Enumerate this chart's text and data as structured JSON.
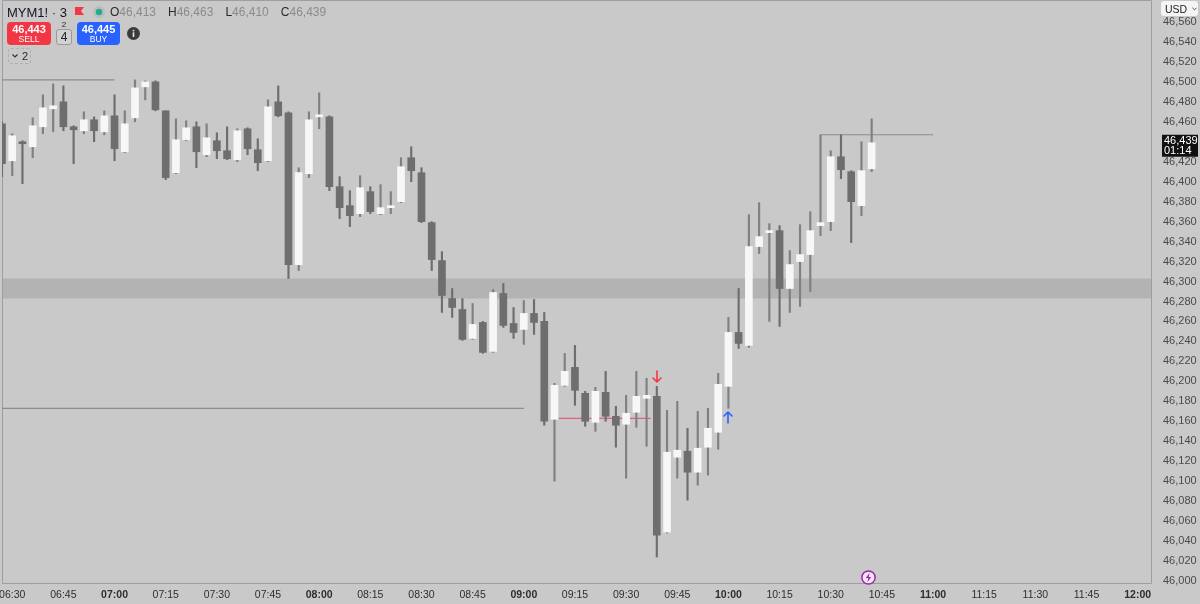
{
  "chart_data": {
    "type": "candlestick",
    "title": "MYM1! · 3",
    "x": [
      6.45,
      6.5,
      6.55,
      6.6,
      6.65,
      6.7,
      6.75,
      6.8,
      6.85,
      6.9,
      6.95,
      7,
      7.05,
      7.1,
      7.15,
      7.2,
      7.25,
      7.3,
      7.35,
      7.4,
      7.45,
      7.5,
      7.55,
      7.6,
      7.65,
      7.7,
      7.75,
      7.8,
      7.85,
      7.9,
      7.95,
      8,
      8.05,
      8.1,
      8.15,
      8.2,
      8.25,
      8.3,
      8.35,
      8.4,
      8.45,
      8.5,
      8.55,
      8.6,
      8.65,
      8.7,
      8.75,
      8.8,
      8.85,
      8.9,
      8.95,
      9,
      9.05,
      9.1,
      9.15,
      9.2,
      9.25,
      9.3,
      9.35,
      9.4,
      9.45,
      9.5,
      9.55,
      9.6,
      9.65,
      9.7,
      9.75,
      9.8,
      9.85,
      9.9,
      9.95,
      10,
      10.05,
      10.1,
      10.15,
      10.2,
      10.25,
      10.3,
      10.35,
      10.4,
      10.45,
      10.5,
      10.55,
      10.6,
      10.65,
      10.7
    ],
    "ohlc": [
      [
        46458,
        46460,
        46405,
        46418
      ],
      [
        46421,
        46448,
        46406,
        46446
      ],
      [
        46440,
        46441,
        46398,
        46438
      ],
      [
        46435,
        46464,
        46424,
        46456
      ],
      [
        46455,
        46487,
        46448,
        46474
      ],
      [
        46473,
        46498,
        46450,
        46476
      ],
      [
        46480,
        46496,
        46451,
        46455
      ],
      [
        46455,
        46456,
        46418,
        46452
      ],
      [
        46451,
        46470,
        46448,
        46462
      ],
      [
        46462,
        46465,
        46440,
        46451
      ],
      [
        46450,
        46471,
        46447,
        46466
      ],
      [
        46466,
        46487,
        46421,
        46433
      ],
      [
        46430,
        46471,
        46429,
        46458
      ],
      [
        46464,
        46502,
        46460,
        46494
      ],
      [
        46495,
        46501,
        46482,
        46500
      ],
      [
        46500,
        46501,
        46471,
        46472
      ],
      [
        46471,
        46471,
        46402,
        46404
      ],
      [
        46409,
        46463,
        46408,
        46442
      ],
      [
        46442,
        46461,
        46441,
        46454
      ],
      [
        46455,
        46460,
        46414,
        46430
      ],
      [
        46427,
        46458,
        46425,
        46444
      ],
      [
        46441,
        46449,
        46423,
        46431
      ],
      [
        46431,
        46455,
        46422,
        46423
      ],
      [
        46422,
        46453,
        46420,
        46451
      ],
      [
        46453,
        46454,
        46427,
        46433
      ],
      [
        46432,
        46443,
        46411,
        46419
      ],
      [
        46421,
        46482,
        46420,
        46475
      ],
      [
        46480,
        46496,
        46465,
        46466
      ],
      [
        46469,
        46470,
        46303,
        46317
      ],
      [
        46317,
        46414,
        46311,
        46409
      ],
      [
        46408,
        46470,
        46404,
        46462
      ],
      [
        46465,
        46489,
        46453,
        46467
      ],
      [
        46465,
        46466,
        46391,
        46395
      ],
      [
        46395,
        46405,
        46363,
        46374
      ],
      [
        46376,
        46391,
        46355,
        46366
      ],
      [
        46368,
        46406,
        46365,
        46394
      ],
      [
        46390,
        46395,
        46368,
        46370
      ],
      [
        46368,
        46397,
        46367,
        46374
      ],
      [
        46374,
        46390,
        46368,
        46376
      ],
      [
        46380,
        46424,
        46379,
        46415
      ],
      [
        46424,
        46435,
        46400,
        46411
      ],
      [
        46409,
        46414,
        46359,
        46360
      ],
      [
        46359,
        46360,
        46311,
        46322
      ],
      [
        46321,
        46330,
        46269,
        46286
      ],
      [
        46283,
        46293,
        46264,
        46274
      ],
      [
        46272,
        46283,
        46241,
        46242
      ],
      [
        46243,
        46278,
        46242,
        46257
      ],
      [
        46259,
        46260,
        46228,
        46229
      ],
      [
        46230,
        46292,
        46229,
        46289
      ],
      [
        46288,
        46298,
        46254,
        46256
      ],
      [
        46258,
        46274,
        46243,
        46249
      ],
      [
        46252,
        46281,
        46237,
        46268
      ],
      [
        46268,
        46282,
        46247,
        46259
      ],
      [
        46260,
        46269,
        46156,
        46160
      ],
      [
        46162,
        46198,
        46100,
        46196
      ],
      [
        46196,
        46228,
        46195,
        46210
      ],
      [
        46214,
        46236,
        46176,
        46191
      ],
      [
        46188,
        46190,
        46155,
        46160
      ],
      [
        46159,
        46194,
        46150,
        46190
      ],
      [
        46189,
        46210,
        46160,
        46165
      ],
      [
        46165,
        46175,
        46134,
        46156
      ],
      [
        46157,
        46186,
        46103,
        46168
      ],
      [
        46169,
        46210,
        46154,
        46185
      ],
      [
        46183,
        46203,
        46135,
        46186
      ],
      [
        46185,
        46195,
        46024,
        46046
      ],
      [
        46049,
        46171,
        46048,
        46129
      ],
      [
        46124,
        46180,
        46103,
        46131
      ],
      [
        46130,
        46153,
        46081,
        46109
      ],
      [
        46109,
        46170,
        46096,
        46133
      ],
      [
        46134,
        46173,
        46106,
        46153
      ],
      [
        46149,
        46208,
        46132,
        46197
      ],
      [
        46195,
        46264,
        46173,
        46249
      ],
      [
        46249,
        46293,
        46233,
        46238
      ],
      [
        46236,
        46367,
        46234,
        46335
      ],
      [
        46335,
        46379,
        46328,
        46345
      ],
      [
        46349,
        46358,
        46260,
        46351
      ],
      [
        46351,
        46356,
        46255,
        46293
      ],
      [
        46293,
        46331,
        46269,
        46317
      ],
      [
        46320,
        46357,
        46275,
        46327
      ],
      [
        46327,
        46370,
        46290,
        46351
      ],
      [
        46356,
        46447,
        46346,
        46359
      ],
      [
        46360,
        46431,
        46351,
        46425
      ],
      [
        46425,
        46447,
        46403,
        46412
      ],
      [
        46410,
        46411,
        46339,
        46380
      ],
      [
        46376,
        46440,
        46366,
        46411
      ],
      [
        46413,
        46463,
        46410,
        46439
      ]
    ],
    "colors": [
      "#6e6e6e",
      "#f7f7f7",
      "#6e6e6e",
      "#f7f7f7",
      "#f7f7f7",
      "#f7f7f7",
      "#6e6e6e",
      "#6e6e6e",
      "#f7f7f7",
      "#6e6e6e",
      "#f7f7f7",
      "#6e6e6e",
      "#f7f7f7",
      "#f7f7f7",
      "#f7f7f7",
      "#6e6e6e",
      "#6e6e6e",
      "#f7f7f7",
      "#f7f7f7",
      "#6e6e6e",
      "#f7f7f7",
      "#6e6e6e",
      "#6e6e6e",
      "#f7f7f7",
      "#6e6e6e",
      "#6e6e6e",
      "#f7f7f7",
      "#6e6e6e",
      "#6e6e6e",
      "#f7f7f7",
      "#f7f7f7",
      "#f7f7f7",
      "#6e6e6e",
      "#6e6e6e",
      "#6e6e6e",
      "#f7f7f7",
      "#6e6e6e",
      "#f7f7f7",
      "#f7f7f7",
      "#f7f7f7",
      "#6e6e6e",
      "#6e6e6e",
      "#6e6e6e",
      "#6e6e6e",
      "#6e6e6e",
      "#6e6e6e",
      "#f7f7f7",
      "#6e6e6e",
      "#f7f7f7",
      "#6e6e6e",
      "#6e6e6e",
      "#f7f7f7",
      "#6e6e6e",
      "#6e6e6e",
      "#f7f7f7",
      "#f7f7f7",
      "#6e6e6e",
      "#6e6e6e",
      "#f7f7f7",
      "#6e6e6e",
      "#6e6e6e",
      "#f7f7f7",
      "#f7f7f7",
      "#f7f7f7",
      "#6e6e6e",
      "#f7f7f7",
      "#f7f7f7",
      "#6e6e6e",
      "#f7f7f7",
      "#f7f7f7",
      "#f7f7f7",
      "#f7f7f7",
      "#6e6e6e",
      "#f7f7f7",
      "#f7f7f7",
      "#f7f7f7",
      "#6e6e6e",
      "#f7f7f7",
      "#f7f7f7",
      "#f7f7f7",
      "#f7f7f7",
      "#f7f7f7",
      "#6e6e6e",
      "#6e6e6e",
      "#f7f7f7",
      "#f7f7f7"
    ],
    "series": [
      {
        "type": "line",
        "x": [
          6.45,
          7
        ],
        "values": [
          46502,
          46502
        ],
        "color": "#8c8c8c"
      },
      {
        "type": "line",
        "x": [
          6.45,
          9
        ],
        "values": [
          46173,
          46173
        ],
        "color": "#8c8c8c"
      },
      {
        "type": "line",
        "x": [
          9.17,
          9.62
        ],
        "values": [
          46163,
          46163
        ],
        "color": "#e0607e"
      },
      {
        "type": "line",
        "x": [
          10.45,
          11
        ],
        "values": [
          46447,
          46447
        ],
        "color": "#8c8c8c"
      }
    ],
    "bands": [
      {
        "axis": "y",
        "from": 46283,
        "to": 46303,
        "color": "#b3b3b3"
      }
    ],
    "xlim": [
      6.45,
      12.07
    ],
    "xticks": [
      {
        "value": 6.5,
        "label": "06:30"
      },
      {
        "value": 6.75,
        "label": "06:45"
      },
      {
        "value": 7,
        "label": "07:00"
      },
      {
        "value": 7.25,
        "label": "07:15"
      },
      {
        "value": 7.5,
        "label": "07:30"
      },
      {
        "value": 7.75,
        "label": "07:45"
      },
      {
        "value": 8,
        "label": "08:00"
      },
      {
        "value": 8.25,
        "label": "08:15"
      },
      {
        "value": 8.5,
        "label": "08:30"
      },
      {
        "value": 8.75,
        "label": "08:45"
      },
      {
        "value": 9,
        "label": "09:00"
      },
      {
        "value": 9.25,
        "label": "09:15"
      },
      {
        "value": 9.5,
        "label": "09:30"
      },
      {
        "value": 9.75,
        "label": "09:45"
      },
      {
        "value": 10,
        "label": "10:00"
      },
      {
        "value": 10.25,
        "label": "10:15"
      },
      {
        "value": 10.5,
        "label": "10:30"
      },
      {
        "value": 10.75,
        "label": "10:45"
      },
      {
        "value": 11,
        "label": "11:00"
      },
      {
        "value": 11.25,
        "label": "11:15"
      },
      {
        "value": 11.5,
        "label": "11:30"
      },
      {
        "value": 11.75,
        "label": "11:45"
      },
      {
        "value": 12,
        "label": "12:00"
      }
    ],
    "ylim": [
      45997,
      46582
    ],
    "yticks": [
      {
        "value": 46000,
        "label": "46,000"
      },
      {
        "value": 46020,
        "label": "46,020"
      },
      {
        "value": 46040,
        "label": "46,040"
      },
      {
        "value": 46060,
        "label": "46,060"
      },
      {
        "value": 46080,
        "label": "46,080"
      },
      {
        "value": 46100,
        "label": "46,100"
      },
      {
        "value": 46120,
        "label": "46,120"
      },
      {
        "value": 46140,
        "label": "46,140"
      },
      {
        "value": 46160,
        "label": "46,160"
      },
      {
        "value": 46180,
        "label": "46,180"
      },
      {
        "value": 46200,
        "label": "46,200"
      },
      {
        "value": 46220,
        "label": "46,220"
      },
      {
        "value": 46240,
        "label": "46,240"
      },
      {
        "value": 46260,
        "label": "46,260"
      },
      {
        "value": 46280,
        "label": "46,280"
      },
      {
        "value": 46300,
        "label": "46,300"
      },
      {
        "value": 46320,
        "label": "46,320"
      },
      {
        "value": 46340,
        "label": "46,340"
      },
      {
        "value": 46360,
        "label": "46,360"
      },
      {
        "value": 46380,
        "label": "46,380"
      },
      {
        "value": 46400,
        "label": "46,400"
      },
      {
        "value": 46420,
        "label": "46,420"
      },
      {
        "value": 46460,
        "label": "46,460"
      },
      {
        "value": 46480,
        "label": "46,480"
      },
      {
        "value": 46500,
        "label": "46,500"
      },
      {
        "value": 46520,
        "label": "46,520"
      },
      {
        "value": 46540,
        "label": "46,540"
      },
      {
        "value": 46560,
        "label": "46,560"
      }
    ],
    "annotations": [
      "O46,413",
      "H46,463",
      "L46,410",
      "C46,439",
      "46,443",
      "SELL",
      "2",
      "4",
      "46,445",
      "BUY",
      "2",
      "USD",
      "46,439",
      "01:14"
    ]
  }
}
